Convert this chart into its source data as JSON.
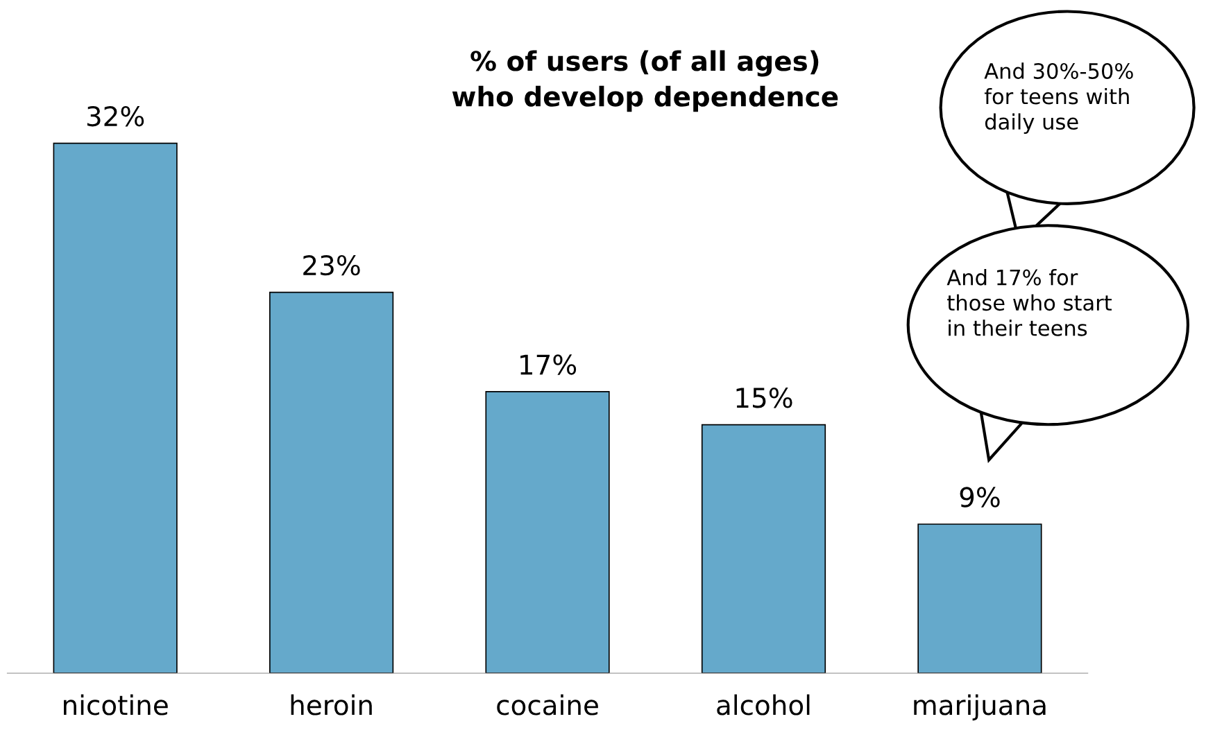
{
  "chart_data": {
    "type": "bar",
    "title": "% of users (of all ages)\nwho develop dependence",
    "categories": [
      "nicotine",
      "heroin",
      "cocaine",
      "alcohol",
      "marijuana"
    ],
    "values": [
      32,
      23,
      17,
      15,
      9
    ],
    "value_labels": [
      "32%",
      "23%",
      "17%",
      "15%",
      "9%"
    ],
    "color": "#65a9cb",
    "annotations": [
      "And 30%-50%\nfor teens with\ndaily use",
      "And 17% for\nthose who start\nin their teens"
    ],
    "grid": false
  }
}
